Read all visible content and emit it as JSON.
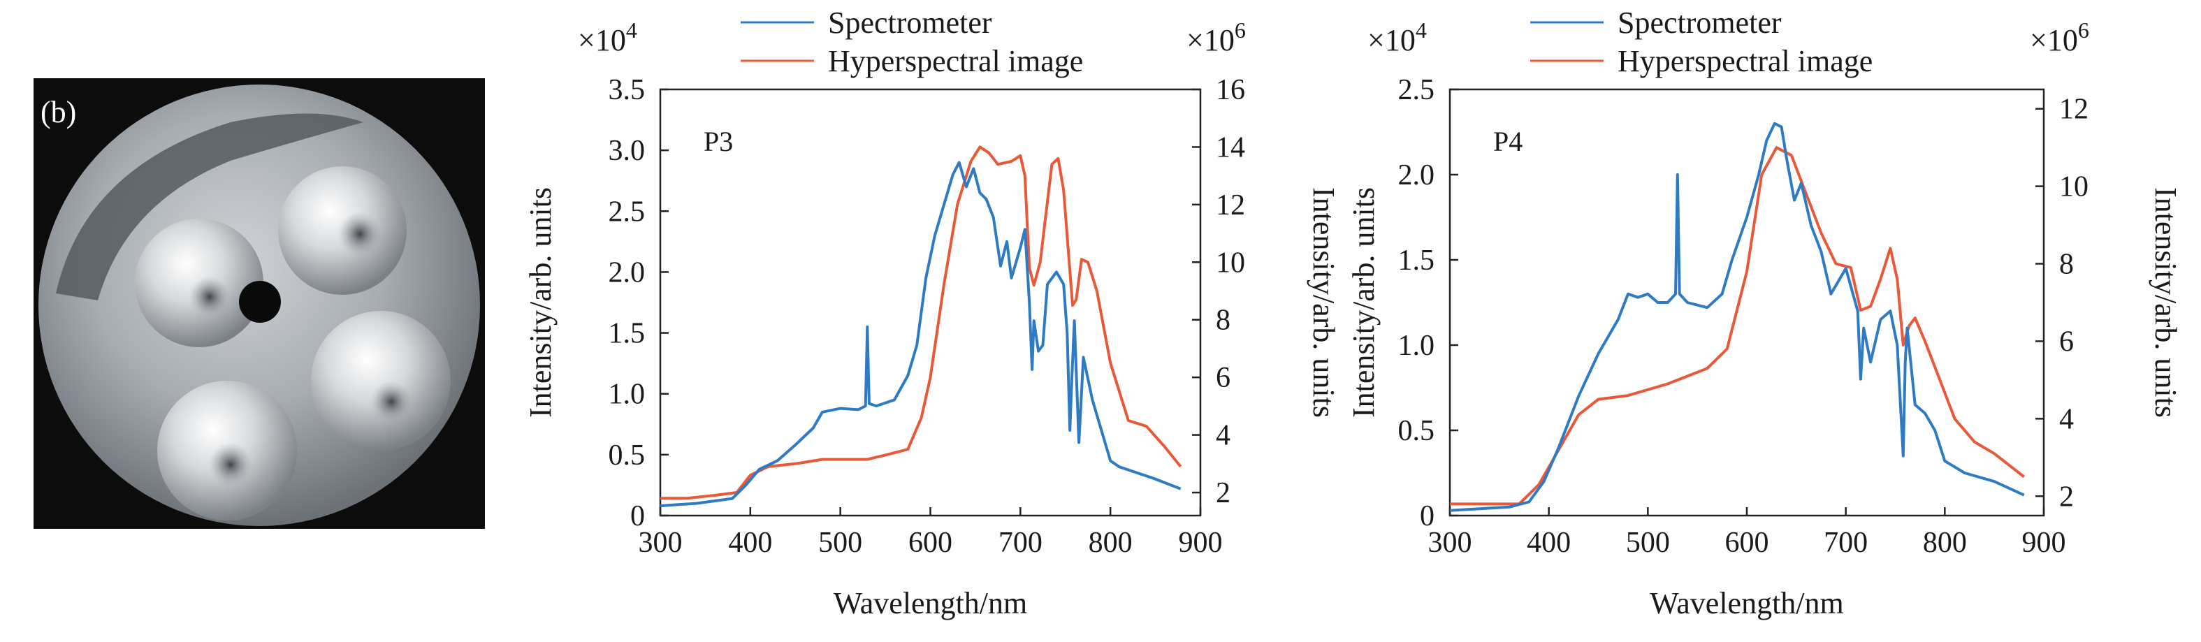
{
  "photo": {
    "panel_label": "(b)"
  },
  "colors": {
    "spectrometer": "#2e7bc4",
    "hyperspectral": "#e8593a",
    "axis": "#222222"
  },
  "chart_data": [
    {
      "type": "line",
      "panel_label": "P3",
      "xlabel": "Wavelength/nm",
      "ylabel_left": "Intensity/arb. units",
      "ylabel_right": "Intensity/arb. units",
      "left_multiplier": "×10",
      "left_exponent": "4",
      "right_multiplier": "×10",
      "right_exponent": "6",
      "xlim": [
        300,
        900
      ],
      "ylim_left": [
        0,
        3.5
      ],
      "ylim_right": [
        1.2,
        16
      ],
      "xticks": [
        "300",
        "400",
        "500",
        "600",
        "700",
        "800",
        "900"
      ],
      "yticks_left": [
        "0",
        "0.5",
        "1.0",
        "1.5",
        "2.0",
        "2.5",
        "3.0",
        "3.5"
      ],
      "yticks_right": [
        "2",
        "4",
        "6",
        "8",
        "10",
        "12",
        "14",
        "16"
      ],
      "legend_position": "top",
      "series": [
        {
          "name": "Spectrometer",
          "axis": "left",
          "x": [
            300,
            320,
            340,
            360,
            380,
            395,
            410,
            430,
            450,
            470,
            480,
            500,
            520,
            528,
            530,
            532,
            540,
            560,
            575,
            585,
            595,
            605,
            615,
            625,
            632,
            640,
            648,
            655,
            662,
            670,
            678,
            685,
            690,
            700,
            705,
            710,
            713,
            715,
            720,
            725,
            730,
            740,
            748,
            752,
            755,
            757,
            760,
            765,
            770,
            780,
            790,
            800,
            810,
            830,
            850,
            878
          ],
          "y": [
            0.08,
            0.09,
            0.1,
            0.12,
            0.14,
            0.25,
            0.38,
            0.45,
            0.58,
            0.72,
            0.85,
            0.88,
            0.87,
            0.9,
            1.55,
            0.92,
            0.9,
            0.95,
            1.15,
            1.4,
            1.95,
            2.3,
            2.55,
            2.8,
            2.9,
            2.7,
            2.85,
            2.65,
            2.6,
            2.45,
            2.05,
            2.25,
            1.95,
            2.2,
            2.35,
            1.75,
            1.2,
            1.6,
            1.35,
            1.4,
            1.9,
            2.0,
            1.9,
            1.5,
            0.7,
            1.1,
            1.6,
            0.6,
            1.3,
            0.95,
            0.7,
            0.45,
            0.4,
            0.35,
            0.3,
            0.22
          ]
        },
        {
          "name": "Hyperspectral image",
          "axis": "right",
          "x": [
            300,
            330,
            360,
            385,
            400,
            420,
            450,
            480,
            500,
            530,
            550,
            575,
            590,
            600,
            615,
            630,
            645,
            655,
            665,
            675,
            690,
            700,
            705,
            710,
            715,
            722,
            735,
            742,
            748,
            753,
            758,
            762,
            768,
            775,
            785,
            800,
            820,
            840,
            860,
            878
          ],
          "y": [
            1.8,
            1.8,
            1.9,
            2.0,
            2.6,
            2.9,
            3.0,
            3.15,
            3.15,
            3.15,
            3.3,
            3.5,
            4.6,
            6.0,
            9.2,
            12.0,
            13.5,
            14.0,
            13.8,
            13.4,
            13.5,
            13.7,
            13.0,
            9.8,
            9.2,
            10.0,
            13.4,
            13.6,
            12.5,
            10.5,
            8.5,
            8.7,
            10.1,
            10.0,
            9.0,
            6.5,
            4.5,
            4.3,
            3.6,
            2.9
          ]
        }
      ]
    },
    {
      "type": "line",
      "panel_label": "P4",
      "xlabel": "Wavelength/nm",
      "ylabel_left": "Intensity/arb. units",
      "ylabel_right": "Intensity/arb. units",
      "left_multiplier": "×10",
      "left_exponent": "4",
      "right_multiplier": "×10",
      "right_exponent": "6",
      "xlim": [
        300,
        900
      ],
      "ylim_left": [
        0,
        2.5
      ],
      "ylim_right": [
        1.5,
        12.5
      ],
      "xticks": [
        "300",
        "400",
        "500",
        "600",
        "700",
        "800",
        "900"
      ],
      "yticks_left": [
        "0",
        "0.5",
        "1.0",
        "1.5",
        "2.0",
        "2.5"
      ],
      "yticks_right": [
        "2",
        "4",
        "6",
        "8",
        "10",
        "12"
      ],
      "legend_position": "top",
      "series": [
        {
          "name": "Spectrometer",
          "axis": "left",
          "x": [
            300,
            330,
            360,
            380,
            395,
            410,
            430,
            450,
            470,
            480,
            490,
            500,
            510,
            520,
            528,
            530,
            532,
            540,
            560,
            575,
            585,
            600,
            612,
            620,
            628,
            635,
            640,
            648,
            655,
            665,
            675,
            685,
            700,
            712,
            715,
            718,
            725,
            735,
            745,
            752,
            758,
            760,
            762,
            770,
            780,
            790,
            800,
            820,
            850,
            880
          ],
          "y": [
            0.03,
            0.04,
            0.05,
            0.08,
            0.2,
            0.4,
            0.7,
            0.95,
            1.15,
            1.3,
            1.28,
            1.3,
            1.25,
            1.25,
            1.3,
            2.0,
            1.3,
            1.25,
            1.22,
            1.3,
            1.5,
            1.75,
            2.0,
            2.2,
            2.3,
            2.28,
            2.1,
            1.85,
            1.95,
            1.7,
            1.55,
            1.3,
            1.45,
            1.2,
            0.8,
            1.1,
            0.9,
            1.15,
            1.2,
            1.0,
            0.35,
            0.9,
            1.1,
            0.65,
            0.6,
            0.5,
            0.32,
            0.25,
            0.2,
            0.12
          ]
        },
        {
          "name": "Hyperspectral image",
          "axis": "right",
          "x": [
            300,
            340,
            370,
            390,
            410,
            430,
            450,
            480,
            520,
            560,
            580,
            600,
            615,
            630,
            645,
            660,
            675,
            690,
            705,
            715,
            725,
            735,
            745,
            752,
            758,
            764,
            770,
            780,
            795,
            810,
            830,
            850,
            880
          ],
          "y": [
            1.8,
            1.8,
            1.8,
            2.3,
            3.2,
            4.1,
            4.5,
            4.6,
            4.9,
            5.3,
            5.8,
            7.8,
            10.3,
            11.0,
            10.8,
            9.8,
            8.8,
            8.0,
            7.9,
            6.8,
            6.9,
            7.6,
            8.4,
            7.6,
            5.9,
            6.4,
            6.6,
            6.0,
            5.0,
            4.0,
            3.4,
            3.1,
            2.5
          ]
        }
      ]
    }
  ]
}
